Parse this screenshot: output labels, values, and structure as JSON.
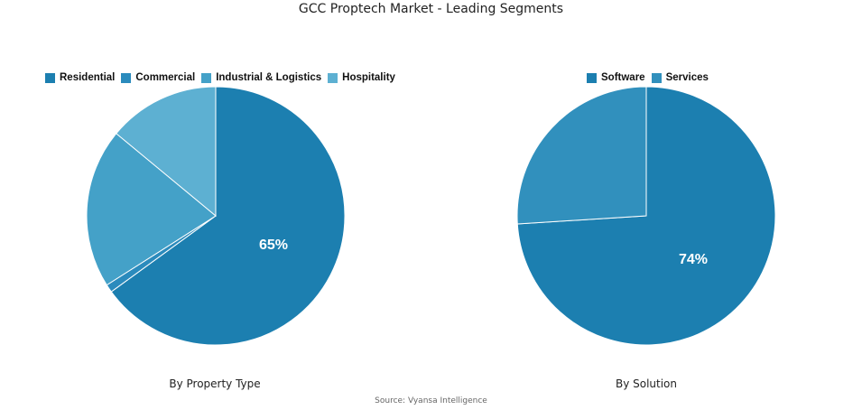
{
  "title": "GCC Proptech Market - Leading Segments",
  "source": "Source: Vyansa Intelligence",
  "chart_data": [
    {
      "type": "pie",
      "subtitle": "By Property Type",
      "categories": [
        "Residential",
        "Commercial",
        "Industrial & Logistics",
        "Hospitality"
      ],
      "values": [
        65,
        1,
        20,
        14
      ],
      "colors": [
        "#1c7fb0",
        "#2b8bbd",
        "#44a1c8",
        "#5db0d2"
      ],
      "data_labels": [
        "65%",
        "",
        "",
        ""
      ],
      "legend_position": "top-left"
    },
    {
      "type": "pie",
      "subtitle": "By Solution",
      "categories": [
        "Software",
        "Services"
      ],
      "values": [
        74,
        26
      ],
      "colors": [
        "#1c7fb0",
        "#3190bd"
      ],
      "data_labels": [
        "74%",
        ""
      ],
      "legend_position": "top-right"
    }
  ]
}
